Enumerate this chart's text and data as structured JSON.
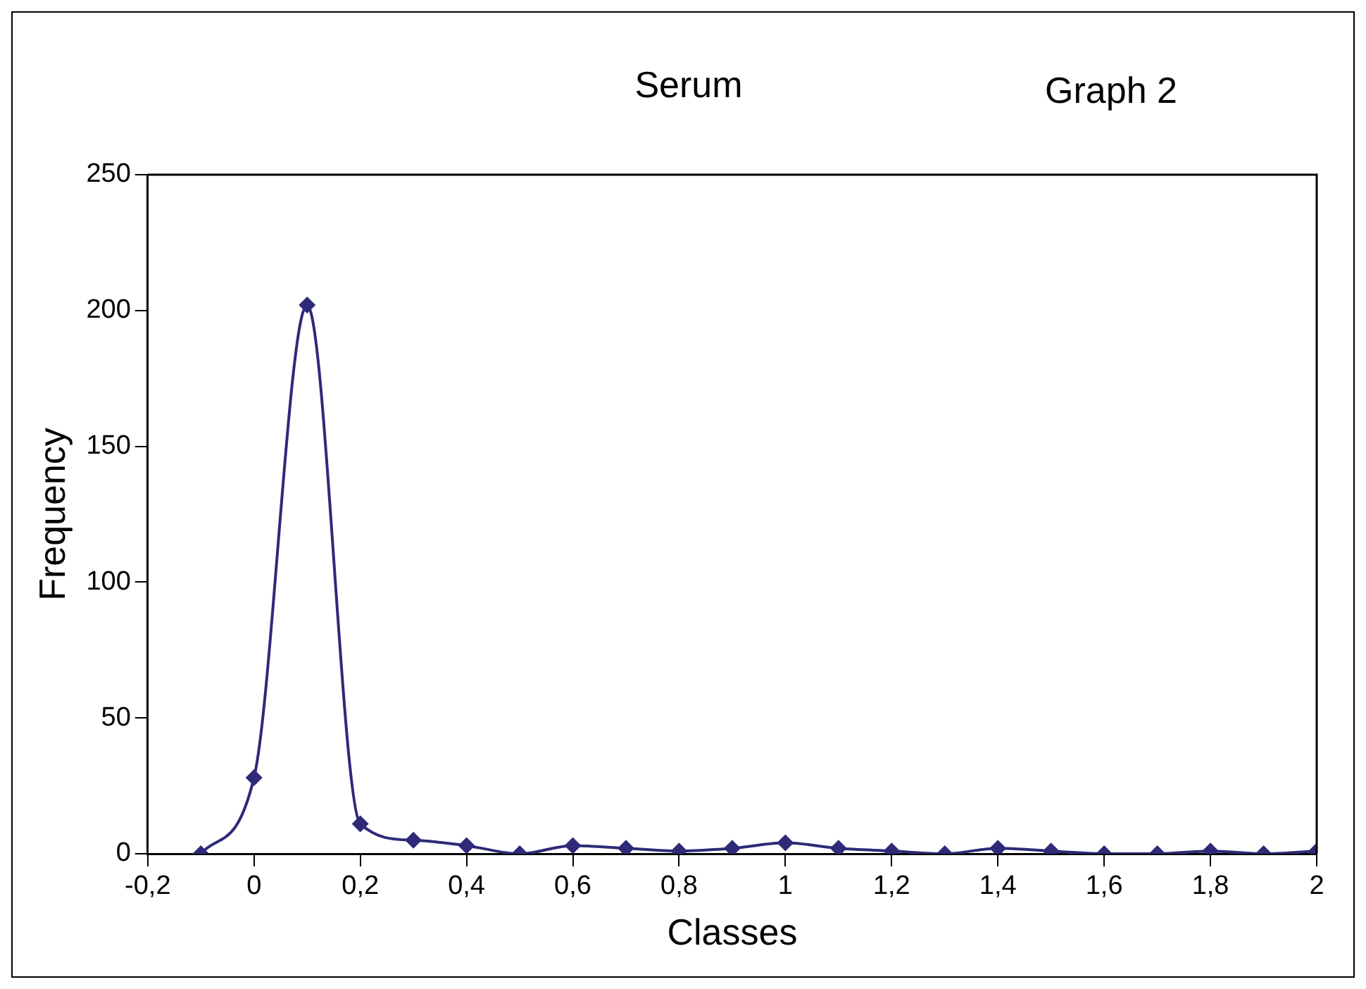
{
  "chart_data": {
    "type": "line",
    "title": "Serum",
    "subtitle": "Graph 2",
    "xlabel": "Classes",
    "ylabel": "Frequency",
    "series": [
      {
        "color": "#2e2a78",
        "x": [
          -0.1,
          0,
          0.1,
          0.2,
          0.3,
          0.4,
          0.5,
          0.6,
          0.7,
          0.8,
          0.9,
          1,
          1.1,
          1.2,
          1.3,
          1.4,
          1.5,
          1.6,
          1.7,
          1.8,
          1.9,
          2
        ],
        "values": [
          0,
          28,
          202,
          11,
          5,
          3,
          0,
          3,
          2,
          1,
          2,
          4,
          2,
          1,
          0,
          2,
          1,
          0,
          0,
          1,
          0,
          1
        ]
      }
    ],
    "xlim": [
      -0.2,
      2
    ],
    "xticks": [
      {
        "value": -0.2,
        "label": "-0,2"
      },
      0,
      {
        "value": 0.2,
        "label": "0,2"
      },
      {
        "value": 0.4,
        "label": "0,4"
      },
      {
        "value": 0.6,
        "label": "0,6"
      },
      {
        "value": 0.8,
        "label": "0,8"
      },
      1,
      {
        "value": 1.2,
        "label": "1,2"
      },
      {
        "value": 1.4,
        "label": "1,4"
      },
      {
        "value": 1.6,
        "label": "1,6"
      },
      {
        "value": 1.8,
        "label": "1,8"
      },
      2
    ],
    "ylim": [
      0,
      250
    ],
    "yticks": [
      0,
      50,
      100,
      150,
      200,
      250
    ],
    "grid": false,
    "legend": false,
    "marker": "diamond",
    "line_style": "solid"
  }
}
